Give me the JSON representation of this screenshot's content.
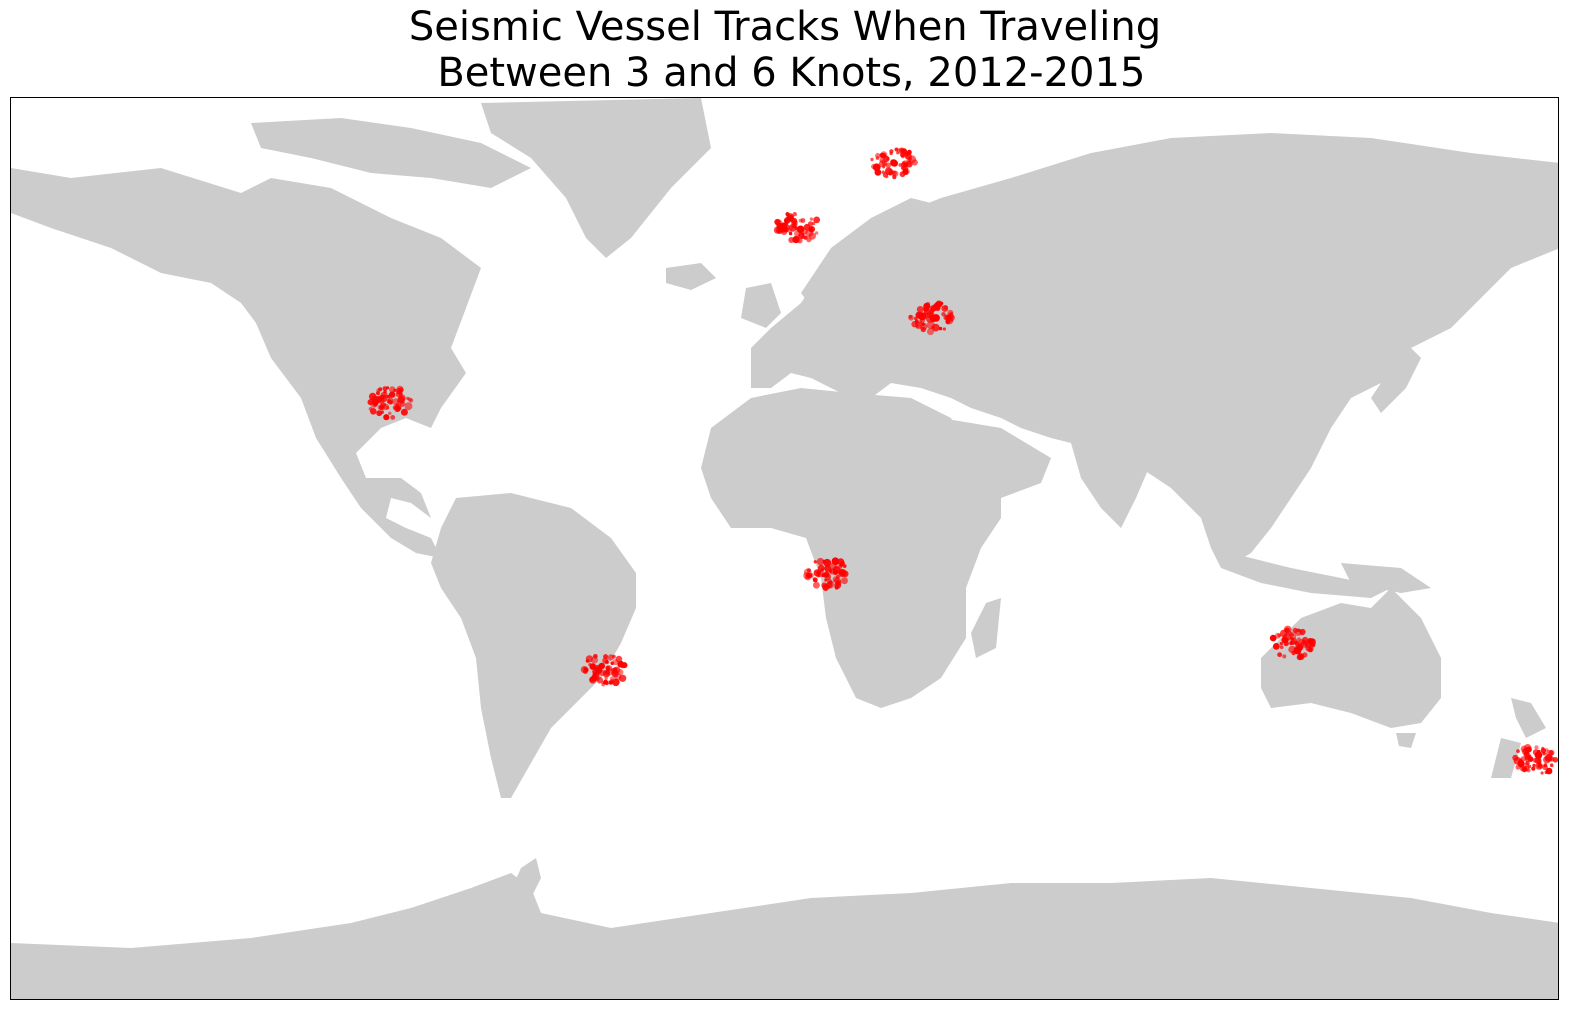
{
  "figure": {
    "title_lines": [
      "Seismic Vessel Tracks When Traveling",
      " Between 3 and 6 Knots, 2012-2015"
    ]
  },
  "map": {
    "projection": "equirectangular",
    "land_color": "#cccccc",
    "ocean_color": "#ffffff",
    "track_color": "#ff0000",
    "dense_regions": [
      {
        "name": "North Sea / Norwegian shelf",
        "lat": 60,
        "lon": 3
      },
      {
        "name": "Barents Sea",
        "lat": 72,
        "lon": 25
      },
      {
        "name": "Gulf of Mexico",
        "lat": 27,
        "lon": -92
      },
      {
        "name": "West Africa margin",
        "lat": -5,
        "lon": 10
      },
      {
        "name": "Northwest Australia",
        "lat": -18,
        "lon": 118
      },
      {
        "name": "New Zealand",
        "lat": -40,
        "lon": 174
      },
      {
        "name": "Brazil margin",
        "lat": -23,
        "lon": -42
      },
      {
        "name": "Black Sea",
        "lat": 43,
        "lon": 34
      }
    ]
  }
}
